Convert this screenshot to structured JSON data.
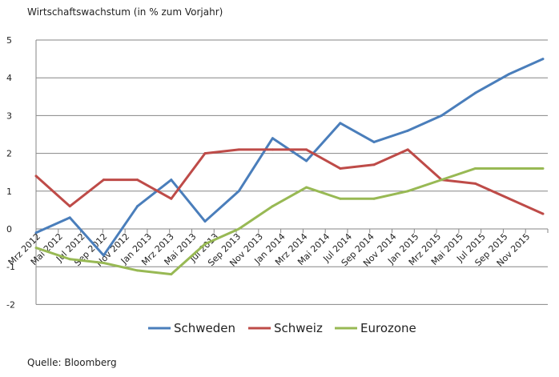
{
  "chart_data": {
    "type": "line",
    "title": "Wirtschaftswachstum (in % zum Vorjahr)",
    "source": "Quelle: Bloomberg",
    "xlabel": "",
    "ylabel": "",
    "ylim": [
      -2,
      5
    ],
    "yticks": [
      "-2",
      "-1",
      "0",
      "1",
      "2",
      "3",
      "4",
      "5"
    ],
    "xtick_labels": [
      "Mrz 2012",
      "Mai 2012",
      "Jul 2012",
      "Sep 2012",
      "Nov 2012",
      "Jan 2013",
      "Mrz 2013",
      "Mai 2013",
      "Jul 2013",
      "Sep 2013",
      "Nov 2013",
      "Jan 2014",
      "Mrz 2014",
      "Mai 2014",
      "Jul 2014",
      "Sep 2014",
      "Nov 2014",
      "Jan 2015",
      "Mrz 2015",
      "Mai 2015",
      "Jul 2015",
      "Sep 2015",
      "Nov 2015"
    ],
    "grid": true,
    "legend_position": "bottom",
    "series": [
      {
        "name": "Schweden",
        "color": "#4a7ebb",
        "values": [
          -0.1,
          0.3,
          -0.7,
          0.6,
          1.3,
          0.2,
          1.0,
          2.4,
          1.8,
          2.8,
          2.3,
          2.6,
          3.0,
          3.6,
          4.1,
          4.5
        ]
      },
      {
        "name": "Schweiz",
        "color": "#be4b48",
        "values": [
          1.4,
          0.6,
          1.3,
          1.3,
          0.8,
          2.0,
          2.1,
          2.1,
          2.1,
          1.6,
          1.7,
          2.1,
          1.3,
          1.2,
          0.8,
          0.4
        ]
      },
      {
        "name": "Eurozone",
        "color": "#98b954",
        "values": [
          -0.5,
          -0.8,
          -0.9,
          -1.1,
          -1.2,
          -0.4,
          0.0,
          0.6,
          1.1,
          0.8,
          0.8,
          1.0,
          1.3,
          1.6,
          1.6,
          1.6
        ]
      }
    ]
  }
}
